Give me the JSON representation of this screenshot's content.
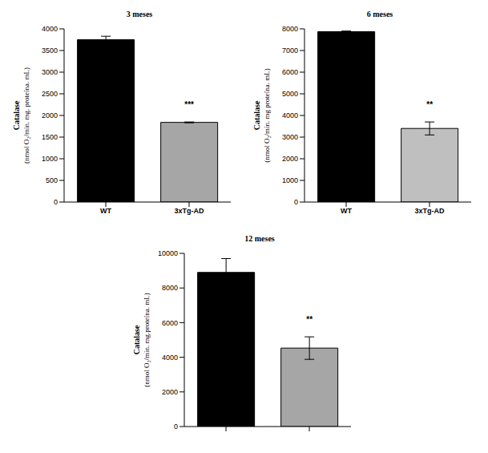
{
  "chart_data": [
    {
      "type": "bar",
      "title": "3 meses",
      "ylabel": [
        "Catalase",
        "(nmol O₂/min. mg. proteína. mL)"
      ],
      "categories": [
        "WT",
        "3xTg-AD"
      ],
      "values": [
        3750,
        1840
      ],
      "errors": [
        80,
        10
      ],
      "significance": [
        null,
        "***"
      ],
      "colors": [
        "#000000",
        "#a6a6a6"
      ],
      "ylim": [
        0,
        4000
      ],
      "yticks": [
        0,
        500,
        1000,
        1500,
        2000,
        2500,
        3000,
        3500,
        4000
      ],
      "grid": false
    },
    {
      "type": "bar",
      "title": "6 meses",
      "ylabel": [
        "Catalase",
        "(nmol O₂/min. mg proteína. mL)"
      ],
      "categories": [
        "WT",
        "3xTg-AD"
      ],
      "values": [
        7870,
        3400
      ],
      "errors": [
        30,
        300
      ],
      "significance": [
        null,
        "**"
      ],
      "colors": [
        "#000000",
        "#bfbfbf"
      ],
      "ylim": [
        0,
        8000
      ],
      "yticks": [
        0,
        1000,
        2000,
        3000,
        4000,
        5000,
        6000,
        7000,
        8000
      ],
      "grid": false
    },
    {
      "type": "bar",
      "title": "12 meses",
      "ylabel": [
        "Catalase",
        "(nmol O₂/min. mg.proteína. mL)"
      ],
      "categories": [
        null,
        null
      ],
      "values": [
        8900,
        4530
      ],
      "errors": [
        800,
        650
      ],
      "significance": [
        null,
        "**"
      ],
      "colors": [
        "#000000",
        "#a6a6a6"
      ],
      "ylim": [
        0,
        10000
      ],
      "yticks": [
        0,
        2000,
        4000,
        6000,
        8000,
        10000
      ],
      "grid": false
    }
  ]
}
